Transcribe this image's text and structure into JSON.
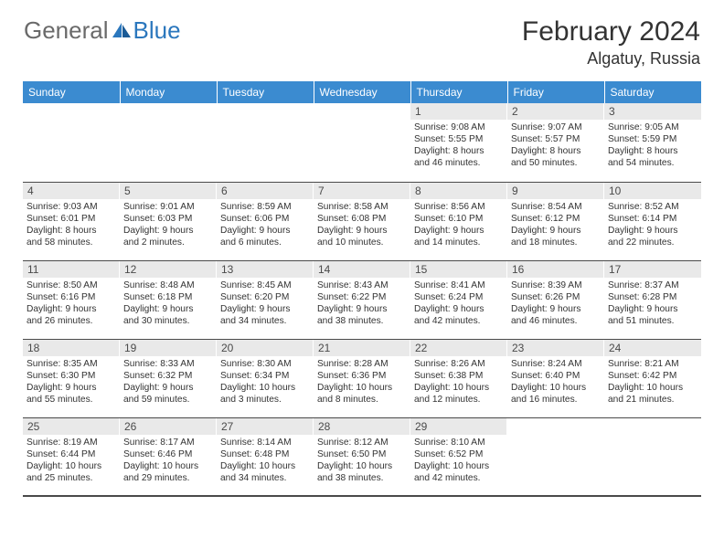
{
  "brand": {
    "general": "General",
    "blue": "Blue"
  },
  "title": "February 2024",
  "location": "Algatuy, Russia",
  "colors": {
    "header_bg": "#3b8bd0",
    "daynum_bg": "#e9e9e9",
    "text": "#333333",
    "brand_gray": "#6a6a6a",
    "brand_blue": "#2b77bd",
    "rule": "#4a4a4a"
  },
  "weekdays": [
    "Sunday",
    "Monday",
    "Tuesday",
    "Wednesday",
    "Thursday",
    "Friday",
    "Saturday"
  ],
  "weeks": [
    [
      {
        "empty": true
      },
      {
        "empty": true
      },
      {
        "empty": true
      },
      {
        "empty": true
      },
      {
        "day": "1",
        "sunrise": "Sunrise: 9:08 AM",
        "sunset": "Sunset: 5:55 PM",
        "dl1": "Daylight: 8 hours",
        "dl2": "and 46 minutes."
      },
      {
        "day": "2",
        "sunrise": "Sunrise: 9:07 AM",
        "sunset": "Sunset: 5:57 PM",
        "dl1": "Daylight: 8 hours",
        "dl2": "and 50 minutes."
      },
      {
        "day": "3",
        "sunrise": "Sunrise: 9:05 AM",
        "sunset": "Sunset: 5:59 PM",
        "dl1": "Daylight: 8 hours",
        "dl2": "and 54 minutes."
      }
    ],
    [
      {
        "day": "4",
        "sunrise": "Sunrise: 9:03 AM",
        "sunset": "Sunset: 6:01 PM",
        "dl1": "Daylight: 8 hours",
        "dl2": "and 58 minutes."
      },
      {
        "day": "5",
        "sunrise": "Sunrise: 9:01 AM",
        "sunset": "Sunset: 6:03 PM",
        "dl1": "Daylight: 9 hours",
        "dl2": "and 2 minutes."
      },
      {
        "day": "6",
        "sunrise": "Sunrise: 8:59 AM",
        "sunset": "Sunset: 6:06 PM",
        "dl1": "Daylight: 9 hours",
        "dl2": "and 6 minutes."
      },
      {
        "day": "7",
        "sunrise": "Sunrise: 8:58 AM",
        "sunset": "Sunset: 6:08 PM",
        "dl1": "Daylight: 9 hours",
        "dl2": "and 10 minutes."
      },
      {
        "day": "8",
        "sunrise": "Sunrise: 8:56 AM",
        "sunset": "Sunset: 6:10 PM",
        "dl1": "Daylight: 9 hours",
        "dl2": "and 14 minutes."
      },
      {
        "day": "9",
        "sunrise": "Sunrise: 8:54 AM",
        "sunset": "Sunset: 6:12 PM",
        "dl1": "Daylight: 9 hours",
        "dl2": "and 18 minutes."
      },
      {
        "day": "10",
        "sunrise": "Sunrise: 8:52 AM",
        "sunset": "Sunset: 6:14 PM",
        "dl1": "Daylight: 9 hours",
        "dl2": "and 22 minutes."
      }
    ],
    [
      {
        "day": "11",
        "sunrise": "Sunrise: 8:50 AM",
        "sunset": "Sunset: 6:16 PM",
        "dl1": "Daylight: 9 hours",
        "dl2": "and 26 minutes."
      },
      {
        "day": "12",
        "sunrise": "Sunrise: 8:48 AM",
        "sunset": "Sunset: 6:18 PM",
        "dl1": "Daylight: 9 hours",
        "dl2": "and 30 minutes."
      },
      {
        "day": "13",
        "sunrise": "Sunrise: 8:45 AM",
        "sunset": "Sunset: 6:20 PM",
        "dl1": "Daylight: 9 hours",
        "dl2": "and 34 minutes."
      },
      {
        "day": "14",
        "sunrise": "Sunrise: 8:43 AM",
        "sunset": "Sunset: 6:22 PM",
        "dl1": "Daylight: 9 hours",
        "dl2": "and 38 minutes."
      },
      {
        "day": "15",
        "sunrise": "Sunrise: 8:41 AM",
        "sunset": "Sunset: 6:24 PM",
        "dl1": "Daylight: 9 hours",
        "dl2": "and 42 minutes."
      },
      {
        "day": "16",
        "sunrise": "Sunrise: 8:39 AM",
        "sunset": "Sunset: 6:26 PM",
        "dl1": "Daylight: 9 hours",
        "dl2": "and 46 minutes."
      },
      {
        "day": "17",
        "sunrise": "Sunrise: 8:37 AM",
        "sunset": "Sunset: 6:28 PM",
        "dl1": "Daylight: 9 hours",
        "dl2": "and 51 minutes."
      }
    ],
    [
      {
        "day": "18",
        "sunrise": "Sunrise: 8:35 AM",
        "sunset": "Sunset: 6:30 PM",
        "dl1": "Daylight: 9 hours",
        "dl2": "and 55 minutes."
      },
      {
        "day": "19",
        "sunrise": "Sunrise: 8:33 AM",
        "sunset": "Sunset: 6:32 PM",
        "dl1": "Daylight: 9 hours",
        "dl2": "and 59 minutes."
      },
      {
        "day": "20",
        "sunrise": "Sunrise: 8:30 AM",
        "sunset": "Sunset: 6:34 PM",
        "dl1": "Daylight: 10 hours",
        "dl2": "and 3 minutes."
      },
      {
        "day": "21",
        "sunrise": "Sunrise: 8:28 AM",
        "sunset": "Sunset: 6:36 PM",
        "dl1": "Daylight: 10 hours",
        "dl2": "and 8 minutes."
      },
      {
        "day": "22",
        "sunrise": "Sunrise: 8:26 AM",
        "sunset": "Sunset: 6:38 PM",
        "dl1": "Daylight: 10 hours",
        "dl2": "and 12 minutes."
      },
      {
        "day": "23",
        "sunrise": "Sunrise: 8:24 AM",
        "sunset": "Sunset: 6:40 PM",
        "dl1": "Daylight: 10 hours",
        "dl2": "and 16 minutes."
      },
      {
        "day": "24",
        "sunrise": "Sunrise: 8:21 AM",
        "sunset": "Sunset: 6:42 PM",
        "dl1": "Daylight: 10 hours",
        "dl2": "and 21 minutes."
      }
    ],
    [
      {
        "day": "25",
        "sunrise": "Sunrise: 8:19 AM",
        "sunset": "Sunset: 6:44 PM",
        "dl1": "Daylight: 10 hours",
        "dl2": "and 25 minutes."
      },
      {
        "day": "26",
        "sunrise": "Sunrise: 8:17 AM",
        "sunset": "Sunset: 6:46 PM",
        "dl1": "Daylight: 10 hours",
        "dl2": "and 29 minutes."
      },
      {
        "day": "27",
        "sunrise": "Sunrise: 8:14 AM",
        "sunset": "Sunset: 6:48 PM",
        "dl1": "Daylight: 10 hours",
        "dl2": "and 34 minutes."
      },
      {
        "day": "28",
        "sunrise": "Sunrise: 8:12 AM",
        "sunset": "Sunset: 6:50 PM",
        "dl1": "Daylight: 10 hours",
        "dl2": "and 38 minutes."
      },
      {
        "day": "29",
        "sunrise": "Sunrise: 8:10 AM",
        "sunset": "Sunset: 6:52 PM",
        "dl1": "Daylight: 10 hours",
        "dl2": "and 42 minutes."
      },
      {
        "empty": true
      },
      {
        "empty": true
      }
    ]
  ]
}
